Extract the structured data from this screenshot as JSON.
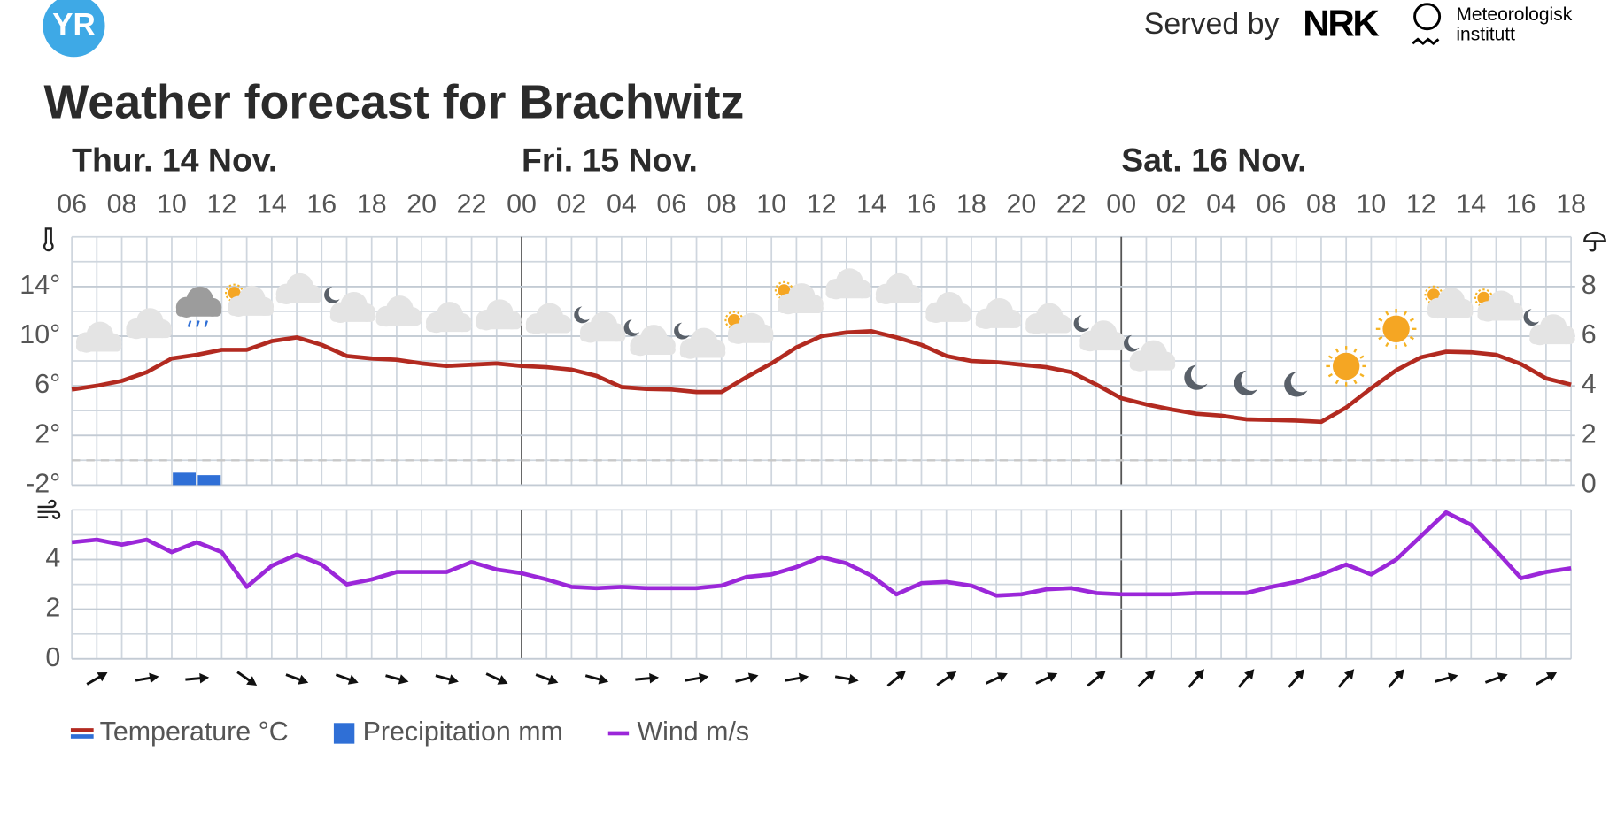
{
  "header": {
    "logo": "YR",
    "served_by": "Served by",
    "nrk": "NRK",
    "met": [
      "Meteorologisk",
      "institutt"
    ]
  },
  "chart_data": {
    "type": "combo",
    "title": "Weather forecast for Brachwitz",
    "categories": [
      "06",
      null,
      "08",
      null,
      "10",
      null,
      "12",
      null,
      "14",
      null,
      "16",
      null,
      "18",
      null,
      "20",
      null,
      "22",
      null,
      "00",
      null,
      "02",
      null,
      "04",
      null,
      "06",
      null,
      "08",
      null,
      "10",
      null,
      "12",
      null,
      "14",
      null,
      "16",
      null,
      "18",
      null,
      "20",
      null,
      "22",
      null,
      "00",
      null,
      "02",
      null,
      "04",
      null,
      "06",
      null,
      "08",
      null,
      "10",
      null,
      "12",
      null,
      "14",
      null,
      "16",
      null,
      "18"
    ],
    "day_labels": [
      "Thur. 14 Nov.",
      null,
      null,
      null,
      null,
      null,
      null,
      null,
      null,
      null,
      null,
      null,
      null,
      null,
      null,
      null,
      null,
      null,
      "Fri. 15 Nov.",
      null,
      null,
      null,
      null,
      null,
      null,
      null,
      null,
      null,
      null,
      null,
      null,
      null,
      null,
      null,
      null,
      null,
      null,
      null,
      null,
      null,
      null,
      null,
      "Sat. 16 Nov.",
      null,
      null,
      null,
      null,
      null,
      null,
      null,
      null,
      null,
      null,
      null,
      null,
      null,
      null,
      null,
      null,
      null,
      null
    ],
    "series": [
      {
        "name": "Temperature °C",
        "type": "line",
        "axis": "y",
        "color": "#b22a20",
        "color_below_zero": "#2f6fd6",
        "values": [
          5.7,
          6.0,
          6.4,
          7.1,
          8.2,
          8.5,
          8.9,
          8.9,
          9.6,
          9.9,
          9.3,
          8.4,
          8.2,
          8.1,
          7.8,
          7.6,
          7.7,
          7.8,
          7.6,
          7.5,
          7.3,
          6.8,
          5.9,
          5.75,
          5.7,
          5.5,
          5.5,
          6.7,
          7.8,
          9.1,
          10.0,
          10.3,
          10.4,
          9.9,
          9.3,
          8.4,
          8.0,
          7.9,
          7.7,
          7.5,
          7.1,
          6.1,
          5.0,
          4.5,
          4.1,
          3.75,
          3.6,
          3.3,
          3.25,
          3.2,
          3.1,
          4.25,
          5.8,
          7.25,
          8.3,
          8.75,
          8.7,
          8.5,
          7.75,
          6.6,
          6.1
        ]
      },
      {
        "name": "Precipitation mm",
        "type": "bar",
        "axis": "y2",
        "color": "#2f6fd6",
        "values": [
          0,
          0,
          0,
          0,
          0.5,
          0.4,
          0,
          0,
          0,
          0,
          0,
          0,
          0,
          0,
          0,
          0,
          0,
          0,
          0,
          0,
          0,
          0,
          0,
          0,
          0,
          0,
          0,
          0,
          0,
          0,
          0,
          0,
          0,
          0,
          0,
          0,
          0,
          0,
          0,
          0,
          0,
          0,
          0,
          0,
          0,
          0,
          0,
          0,
          0,
          0,
          0,
          0,
          0,
          0,
          0,
          0,
          0,
          0,
          0,
          0,
          0
        ]
      },
      {
        "name": "Wind m/s",
        "type": "line",
        "axis": "y3",
        "color": "#9b27d9",
        "values": [
          4.7,
          4.8,
          4.6,
          4.8,
          4.3,
          4.7,
          4.3,
          2.9,
          3.75,
          4.2,
          3.8,
          3.0,
          3.2,
          3.5,
          3.5,
          3.5,
          3.9,
          3.6,
          3.45,
          3.2,
          2.9,
          2.85,
          2.9,
          2.85,
          2.85,
          2.85,
          2.95,
          3.3,
          3.4,
          3.7,
          4.1,
          3.85,
          3.35,
          2.6,
          3.05,
          3.1,
          2.95,
          2.55,
          2.6,
          2.8,
          2.85,
          2.65,
          2.6,
          2.6,
          2.6,
          2.65,
          2.65,
          2.65,
          2.9,
          3.1,
          3.4,
          3.8,
          3.4,
          4.0,
          4.95,
          5.9,
          5.4,
          4.35,
          3.25,
          3.5,
          3.65
        ]
      }
    ],
    "ylim": [
      -2,
      18
    ],
    "yticks": [
      {
        "value": -2,
        "label": "-2°"
      },
      {
        "value": 2,
        "label": "2°"
      },
      {
        "value": 6,
        "label": "6°"
      },
      {
        "value": 10,
        "label": "10°"
      },
      {
        "value": 14,
        "label": "14°"
      }
    ],
    "y2lim": [
      0,
      10
    ],
    "y2ticks": [
      0,
      2,
      4,
      6,
      8
    ],
    "y3lim": [
      0,
      6
    ],
    "y3ticks": [
      0,
      2,
      4
    ],
    "reference_line": 0,
    "grid": true
  }
}
